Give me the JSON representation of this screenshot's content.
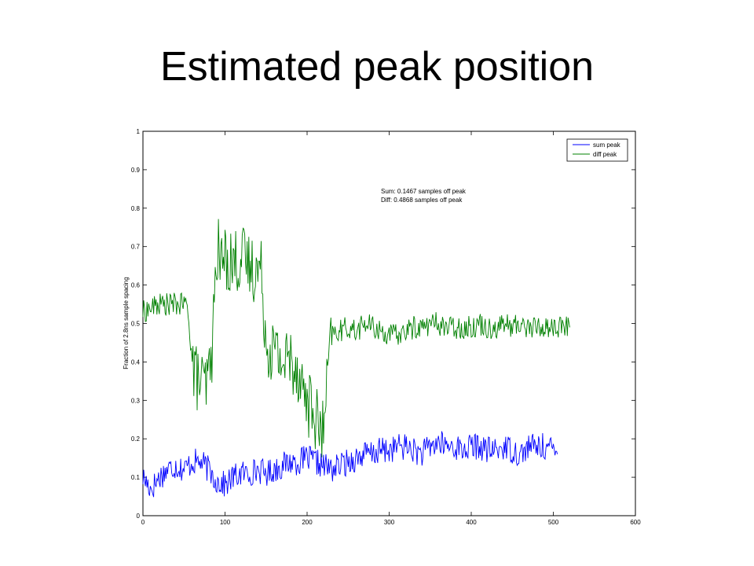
{
  "slide": {
    "title": "Estimated peak position"
  },
  "chart_data": {
    "type": "line",
    "title": "",
    "xlabel": "",
    "ylabel": "Fraction of 2.8ns sample spacing",
    "xlim": [
      0,
      600
    ],
    "ylim": [
      0,
      1
    ],
    "x_ticks": [
      "0",
      "100",
      "200",
      "300",
      "400",
      "500",
      "600"
    ],
    "y_ticks": [
      "0",
      "0.1",
      "0.2",
      "0.3",
      "0.4",
      "0.5",
      "0.6",
      "0.7",
      "0.8",
      "0.9",
      "1"
    ],
    "legend_position": "top-right",
    "grid": false,
    "annotations": [
      "Sum: 0.1467 samples off peak",
      "Diff: 0.4868 samples off peak"
    ],
    "series": [
      {
        "name": "sum peak",
        "color": "#0000ff",
        "x": [
          0,
          10,
          20,
          30,
          40,
          50,
          60,
          70,
          80,
          90,
          100,
          110,
          120,
          130,
          140,
          150,
          160,
          170,
          180,
          190,
          200,
          210,
          220,
          230,
          240,
          250,
          260,
          270,
          280,
          290,
          300,
          310,
          320,
          330,
          340,
          350,
          360,
          370,
          380,
          390,
          400,
          410,
          420,
          430,
          440,
          450,
          460,
          470,
          480,
          490,
          500,
          505
        ],
        "values": [
          0.1,
          0.07,
          0.1,
          0.12,
          0.13,
          0.12,
          0.14,
          0.14,
          0.12,
          0.09,
          0.08,
          0.1,
          0.11,
          0.11,
          0.12,
          0.11,
          0.12,
          0.13,
          0.14,
          0.14,
          0.15,
          0.14,
          0.13,
          0.12,
          0.13,
          0.14,
          0.15,
          0.16,
          0.16,
          0.17,
          0.17,
          0.18,
          0.18,
          0.17,
          0.16,
          0.18,
          0.19,
          0.18,
          0.18,
          0.17,
          0.18,
          0.18,
          0.17,
          0.17,
          0.18,
          0.17,
          0.16,
          0.18,
          0.18,
          0.18,
          0.17,
          0.16
        ]
      },
      {
        "name": "diff peak",
        "color": "#008000",
        "x": [
          0,
          10,
          20,
          30,
          40,
          50,
          55,
          60,
          65,
          70,
          75,
          80,
          85,
          88,
          90,
          95,
          100,
          110,
          120,
          130,
          140,
          145,
          150,
          160,
          170,
          180,
          190,
          195,
          200,
          205,
          210,
          215,
          220,
          225,
          230,
          240,
          250,
          260,
          270,
          280,
          290,
          300,
          310,
          320,
          330,
          340,
          350,
          360,
          370,
          380,
          390,
          400,
          410,
          420,
          430,
          440,
          450,
          460,
          470,
          480,
          490,
          500,
          510,
          520
        ],
        "values": [
          0.53,
          0.54,
          0.55,
          0.55,
          0.55,
          0.55,
          0.54,
          0.4,
          0.36,
          0.35,
          0.33,
          0.36,
          0.45,
          0.6,
          0.7,
          0.66,
          0.67,
          0.66,
          0.67,
          0.65,
          0.64,
          0.63,
          0.45,
          0.43,
          0.4,
          0.41,
          0.38,
          0.33,
          0.3,
          0.28,
          0.26,
          0.22,
          0.22,
          0.35,
          0.47,
          0.48,
          0.49,
          0.48,
          0.5,
          0.49,
          0.48,
          0.47,
          0.47,
          0.48,
          0.49,
          0.49,
          0.5,
          0.5,
          0.49,
          0.49,
          0.49,
          0.49,
          0.5,
          0.49,
          0.49,
          0.5,
          0.49,
          0.5,
          0.49,
          0.49,
          0.49,
          0.49,
          0.49,
          0.49
        ]
      }
    ]
  }
}
